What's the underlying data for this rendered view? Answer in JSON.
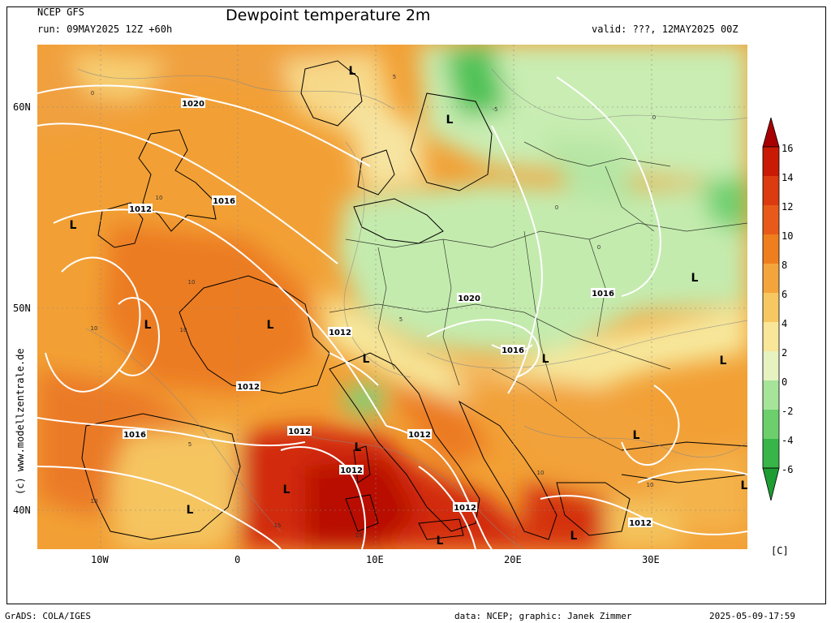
{
  "header": {
    "model": "NCEP GFS",
    "run": "run: 09MAY2025 12Z +60h",
    "title": "Dewpoint temperature 2m",
    "valid": "valid: ???, 12MAY2025 00Z"
  },
  "axes": {
    "lat_labels": [
      "60N",
      "50N",
      "40N"
    ],
    "lon_labels": [
      "10W",
      "0",
      "10E",
      "20E",
      "30E"
    ]
  },
  "colorbar": {
    "labels": [
      "16",
      "14",
      "12",
      "10",
      "8",
      "6",
      "4",
      "2",
      "0",
      "-2",
      "-4",
      "-6"
    ],
    "colors": [
      "#b40000",
      "#d42a0a",
      "#e8501a",
      "#ef7a1a",
      "#f3a23a",
      "#f6c660",
      "#f8e69a",
      "#eef0c2",
      "#c2ecb0",
      "#8ddd86",
      "#53c457",
      "#29a83a",
      "#17932c"
    ],
    "unit": "[C]"
  },
  "watermark": "(c) www.modellzentrale.de",
  "footer": {
    "left": "GrADS: COLA/IGES",
    "middle": "data: NCEP; graphic: Janek Zimmer",
    "right": "2025-05-09-17:59"
  },
  "map": {
    "isobars": [
      {
        "label": "1020"
      },
      {
        "label": "1016"
      },
      {
        "label": "1012"
      },
      {
        "label": "1012"
      },
      {
        "label": "1012"
      },
      {
        "label": "1016"
      },
      {
        "label": "1012"
      },
      {
        "label": "1012"
      },
      {
        "label": "1012"
      },
      {
        "label": "1012"
      },
      {
        "label": "1020"
      },
      {
        "label": "1016"
      },
      {
        "label": "1016"
      },
      {
        "label": "1012"
      }
    ],
    "lows": [
      "L",
      "L",
      "L",
      "L",
      "L",
      "L",
      "L",
      "L",
      "L",
      "L",
      "L",
      "L",
      "L",
      "L",
      "L",
      "L",
      "L"
    ],
    "contour_values": [
      "0",
      "5",
      "10",
      "15",
      "-5"
    ]
  }
}
